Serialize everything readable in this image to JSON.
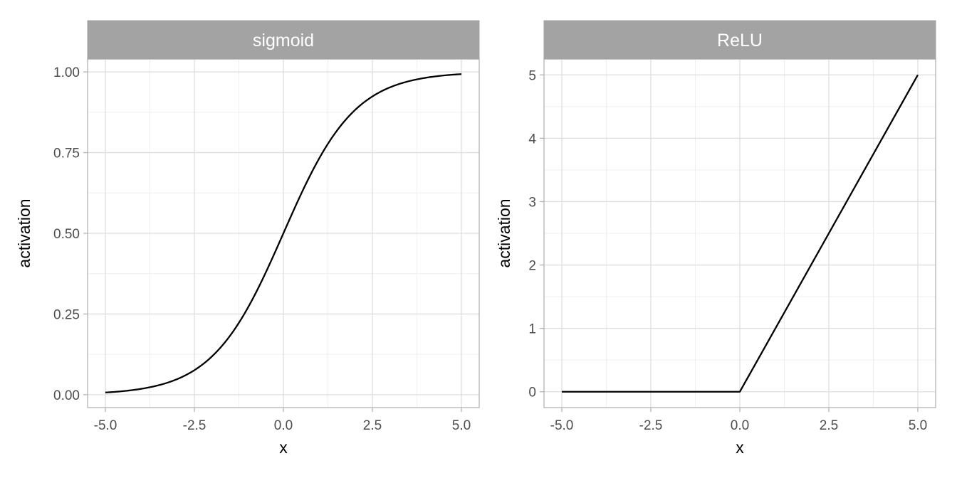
{
  "colors": {
    "strip_bg": "#a3a3a3",
    "strip_text": "#ffffff",
    "panel_border": "#b3b3b3",
    "grid_major": "#dedede",
    "grid_minor": "#efefef",
    "line": "#000000",
    "tick_text": "#4d4d4d"
  },
  "chart_data": [
    {
      "type": "line",
      "title": "sigmoid",
      "xlabel": "x",
      "ylabel": "activation",
      "xlim": [
        -5.5,
        5.5
      ],
      "ylim": [
        -0.04,
        1.04
      ],
      "x_ticks": [
        -5.0,
        -2.5,
        0.0,
        2.5,
        5.0
      ],
      "x_tick_labels": [
        "-5.0",
        "-2.5",
        "0.0",
        "2.5",
        "5.0"
      ],
      "y_ticks": [
        0.0,
        0.25,
        0.5,
        0.75,
        1.0
      ],
      "y_tick_labels": [
        "0.00",
        "0.25",
        "0.50",
        "0.75",
        "1.00"
      ],
      "grid": true,
      "function": "1/(1+exp(-x))",
      "x": [
        -5,
        -4,
        -3,
        -2.5,
        -2,
        -1,
        0,
        1,
        2,
        2.5,
        3,
        4,
        5
      ],
      "y": [
        0.007,
        0.018,
        0.047,
        0.076,
        0.119,
        0.269,
        0.5,
        0.731,
        0.881,
        0.924,
        0.953,
        0.982,
        0.993
      ]
    },
    {
      "type": "line",
      "title": "ReLU",
      "xlabel": "x",
      "ylabel": "activation",
      "xlim": [
        -5.5,
        5.5
      ],
      "ylim": [
        -0.25,
        5.25
      ],
      "x_ticks": [
        -5.0,
        -2.5,
        0.0,
        2.5,
        5.0
      ],
      "x_tick_labels": [
        "-5.0",
        "-2.5",
        "0.0",
        "2.5",
        "5.0"
      ],
      "y_ticks": [
        0,
        1,
        2,
        3,
        4,
        5
      ],
      "y_tick_labels": [
        "0",
        "1",
        "2",
        "3",
        "4",
        "5"
      ],
      "grid": true,
      "function": "max(0, x)",
      "x": [
        -5,
        0,
        5
      ],
      "y": [
        0,
        0,
        5
      ]
    }
  ]
}
